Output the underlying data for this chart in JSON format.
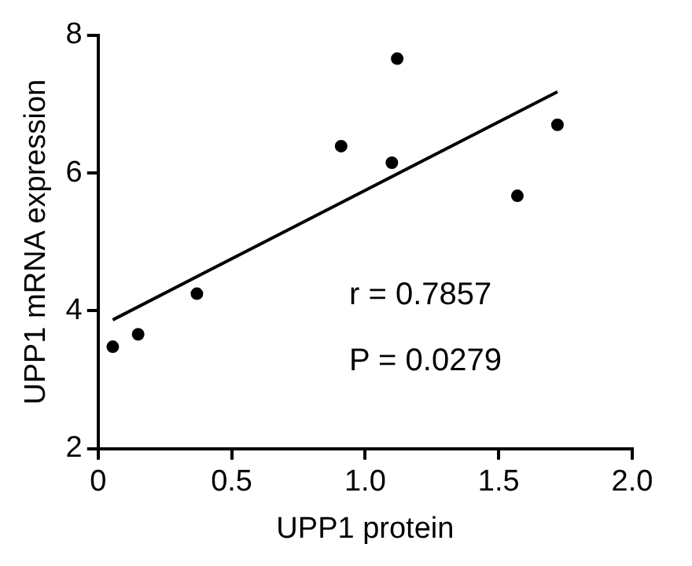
{
  "chart_data": {
    "type": "scatter",
    "xlabel": "UPP1 protein",
    "ylabel": "UPP1 mRNA expression",
    "xlim": [
      0,
      2
    ],
    "xticks": [
      0,
      0.5,
      {
        "value": 1,
        "label": "1.0"
      },
      1.5,
      {
        "value": 2,
        "label": "2.0"
      }
    ],
    "ylim": [
      2,
      8
    ],
    "yticks": [
      2,
      4,
      6,
      8
    ],
    "grid": false,
    "legend": false,
    "marker": "circle",
    "series": [
      {
        "color": "#000000",
        "x": [
          0.055,
          0.15,
          0.37,
          0.91,
          1.1,
          1.12,
          1.57,
          1.72
        ],
        "values": [
          3.48,
          3.66,
          4.25,
          6.39,
          6.15,
          7.66,
          5.67,
          6.7
        ]
      },
      {
        "type": "line",
        "color": "#000000",
        "marker": "none",
        "x": [
          0.055,
          1.72
        ],
        "values": [
          3.87,
          7.18
        ]
      }
    ],
    "annotations": [
      "r = 0.7857",
      "P = 0.0279"
    ]
  }
}
